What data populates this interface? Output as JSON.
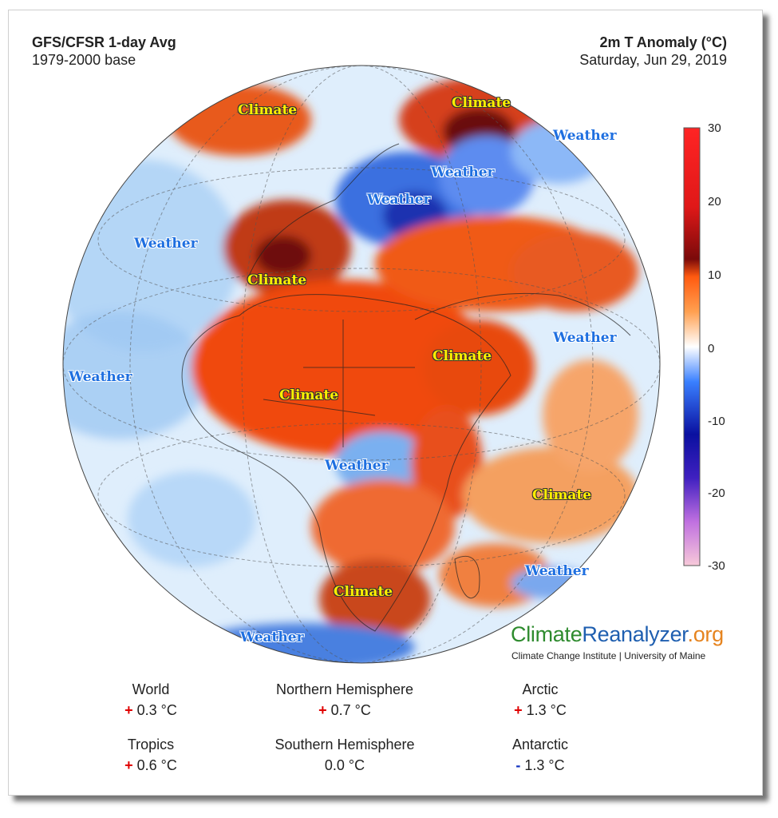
{
  "header": {
    "title_left": "GFS/CFSR 1-day Avg",
    "subtitle_left": "1979-2000 base",
    "title_right": "2m T Anomaly (°C)",
    "subtitle_right": "Saturday, Jun 29, 2019"
  },
  "colorbar": {
    "ticks": [
      "30",
      "20",
      "10",
      "0",
      "-10",
      "-20",
      "-30"
    ],
    "colors": [
      "#f7c9d9",
      "#a030d0",
      "#1010a0",
      "#2060ff",
      "#a8d0ff",
      "#ffffff",
      "#ffb070",
      "#ff5a10",
      "#7a0a0a",
      "#ff2020",
      "#d81010"
    ]
  },
  "overlay_labels": [
    {
      "text": "Climate",
      "kind": "climate"
    },
    {
      "text": "Climate",
      "kind": "climate"
    },
    {
      "text": "Weather",
      "kind": "weather"
    },
    {
      "text": "Weather",
      "kind": "weather"
    },
    {
      "text": "Weather",
      "kind": "weather"
    },
    {
      "text": "Weather",
      "kind": "weather"
    },
    {
      "text": "Climate",
      "kind": "climate"
    },
    {
      "text": "Weather",
      "kind": "weather"
    },
    {
      "text": "Climate",
      "kind": "climate"
    },
    {
      "text": "Weather",
      "kind": "weather"
    },
    {
      "text": "Climate",
      "kind": "climate"
    },
    {
      "text": "Weather",
      "kind": "weather"
    },
    {
      "text": "Climate",
      "kind": "climate"
    },
    {
      "text": "Weather",
      "kind": "weather"
    },
    {
      "text": "Climate",
      "kind": "climate"
    },
    {
      "text": "Weather",
      "kind": "weather"
    }
  ],
  "logo": {
    "part1": "Climate",
    "part2": "Reanalyzer",
    "part3": ".org",
    "subtitle": "Climate Change Institute | University of Maine"
  },
  "stats": [
    {
      "name": "World",
      "sign": "+",
      "value": "0.3 °C"
    },
    {
      "name": "Northern Hemisphere",
      "sign": "+",
      "value": "0.7 °C"
    },
    {
      "name": "Arctic",
      "sign": "+",
      "value": "1.3 °C"
    },
    {
      "name": "Tropics",
      "sign": "+",
      "value": "0.6 °C"
    },
    {
      "name": "Southern Hemisphere",
      "sign": "",
      "value": "0.0 °C"
    },
    {
      "name": "Antarctic",
      "sign": "-",
      "value": "1.3 °C"
    }
  ]
}
